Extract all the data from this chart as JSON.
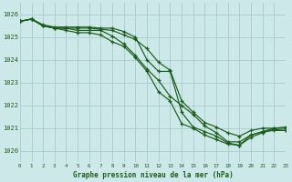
{
  "title": "Graphe pression niveau de la mer (hPa)",
  "bg_color": "#cce8e8",
  "grid_color": "#aacccc",
  "line_color": "#1a5c1a",
  "xlim": [
    0,
    23
  ],
  "ylim": [
    1019.5,
    1026.5
  ],
  "yticks": [
    1020,
    1021,
    1022,
    1023,
    1024,
    1025,
    1026
  ],
  "xticks": [
    0,
    1,
    2,
    3,
    4,
    5,
    6,
    7,
    8,
    9,
    10,
    11,
    12,
    13,
    14,
    15,
    16,
    17,
    18,
    19,
    20,
    21,
    22,
    23
  ],
  "series": [
    [
      1025.7,
      1025.8,
      1025.5,
      1025.4,
      1025.3,
      1025.2,
      1025.2,
      1025.1,
      1024.8,
      1024.6,
      1024.1,
      1023.5,
      1022.6,
      1022.2,
      1021.2,
      1021.0,
      1020.7,
      1020.5,
      1020.3,
      1020.25,
      1020.7,
      1020.85,
      1020.9,
      1020.9
    ],
    [
      1025.7,
      1025.8,
      1025.5,
      1025.4,
      1025.4,
      1025.3,
      1025.3,
      1025.3,
      1025.05,
      1024.7,
      1024.2,
      1023.6,
      1023.1,
      1022.4,
      1022.0,
      1021.6,
      1021.1,
      1020.8,
      1020.4,
      1020.4,
      1020.7,
      1020.85,
      1021.0,
      1021.0
    ],
    [
      1025.7,
      1025.8,
      1025.5,
      1025.4,
      1025.4,
      1025.4,
      1025.4,
      1025.35,
      1025.3,
      1025.1,
      1024.9,
      1024.5,
      1023.9,
      1023.55,
      1022.2,
      1021.7,
      1021.25,
      1021.05,
      1020.8,
      1020.65,
      1020.9,
      1021.0,
      1021.0,
      1021.05
    ],
    [
      1025.7,
      1025.8,
      1025.55,
      1025.45,
      1025.45,
      1025.45,
      1025.45,
      1025.4,
      1025.4,
      1025.25,
      1025.0,
      1024.0,
      1023.5,
      1023.5,
      1021.7,
      1021.05,
      1020.85,
      1020.65,
      1020.35,
      1020.25,
      1020.6,
      1020.8,
      1020.95,
      1020.9
    ]
  ]
}
